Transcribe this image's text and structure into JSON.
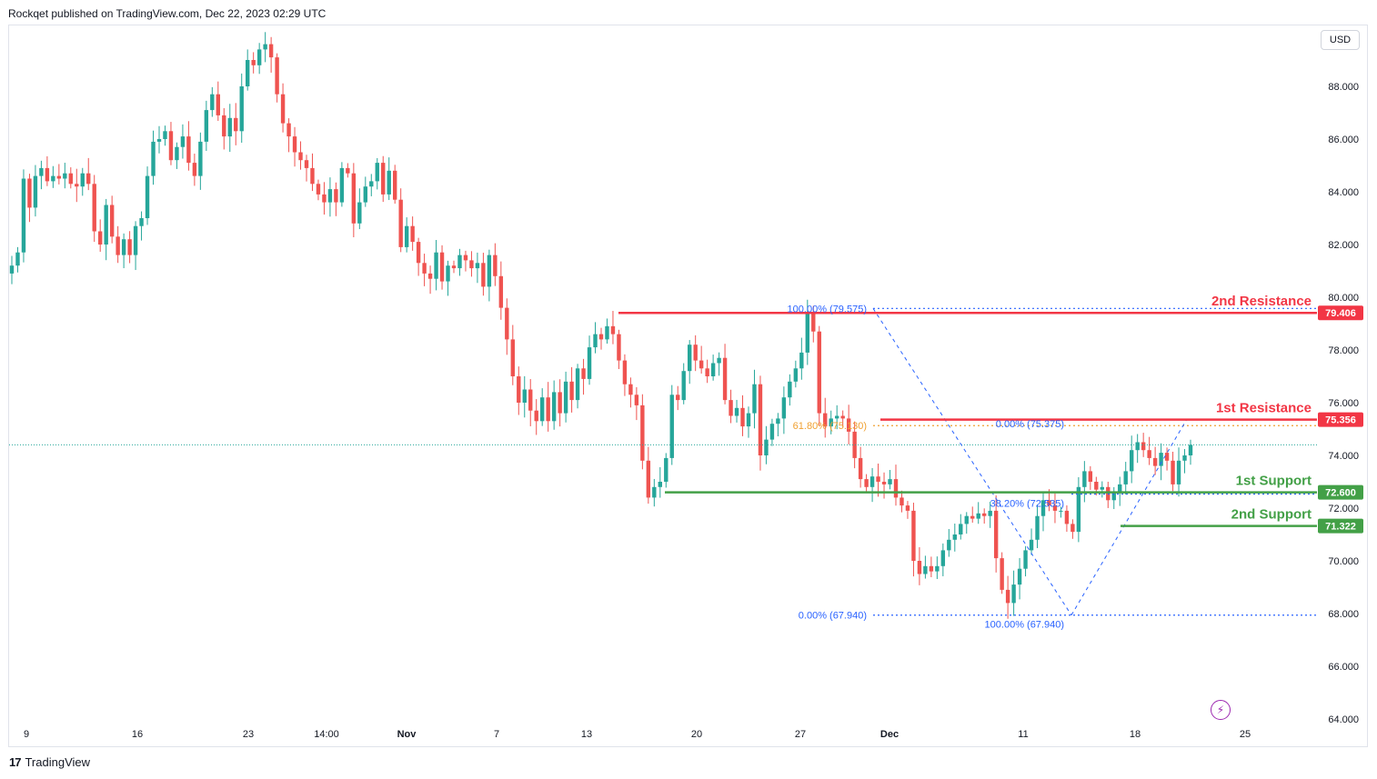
{
  "header": {
    "text": "Rockqet published on TradingView.com, Dec 22, 2023 02:29 UTC"
  },
  "currency_button": "USD",
  "footer": {
    "brand": "TradingView",
    "logo_glyph": "17"
  },
  "bolt_icon": "lightning-icon",
  "colors": {
    "up": "#26a69a",
    "down": "#ef5350",
    "resistance": "#f23645",
    "support": "#43a047",
    "fib_blue": "#2962ff",
    "fib_orange": "#f0a030"
  },
  "chart_data": {
    "type": "candlestick",
    "symbol_unit": "USD",
    "y_ticks": [
      "88.000",
      "86.000",
      "84.000",
      "82.000",
      "80.000",
      "78.000",
      "76.000",
      "74.000",
      "72.000",
      "70.000",
      "68.000",
      "66.000",
      "64.000"
    ],
    "x_ticks": [
      "9",
      "16",
      "23",
      "14:00",
      "Nov",
      "7",
      "13",
      "20",
      "27",
      "Dec",
      "11",
      "18",
      "25"
    ],
    "levels": [
      {
        "label": "2nd Resistance",
        "price": "79.406",
        "type": "resistance"
      },
      {
        "label": "1st Resistance",
        "price": "75.356",
        "type": "resistance"
      },
      {
        "label": "1st Support",
        "price": "72.600",
        "type": "support"
      },
      {
        "label": "2nd Support",
        "price": "71.322",
        "type": "support"
      }
    ],
    "fib_labels": [
      "100.00% (79.575)",
      "61.80% (75.130)",
      "0.00% (67.940)",
      "0.00% (75.375)",
      "38.20% (72.535)",
      "100.00% (67.940)"
    ],
    "closes": [
      81.2,
      81.7,
      84.5,
      83.4,
      84.6,
      84.9,
      84.4,
      84.6,
      84.5,
      84.7,
      84.3,
      84.2,
      84.7,
      84.3,
      82.5,
      82.0,
      83.5,
      82.3,
      81.6,
      82.2,
      81.6,
      82.7,
      83.0,
      84.6,
      85.9,
      86.0,
      86.3,
      85.2,
      85.7,
      86.1,
      85.1,
      84.6,
      85.9,
      87.1,
      87.7,
      86.9,
      86.1,
      86.8,
      86.3,
      88.0,
      89.0,
      88.8,
      89.4,
      89.6,
      89.1,
      87.7,
      86.6,
      86.1,
      85.5,
      85.2,
      84.9,
      84.3,
      83.9,
      83.6,
      84.1,
      83.6,
      84.9,
      84.7,
      82.8,
      83.6,
      84.2,
      84.4,
      85.1,
      83.9,
      84.8,
      83.7,
      81.9,
      82.7,
      82.1,
      81.3,
      80.9,
      80.7,
      81.7,
      80.6,
      81.2,
      81.1,
      81.6,
      81.4,
      81.1,
      81.3,
      80.4,
      81.6,
      80.8,
      79.6,
      78.4,
      77.0,
      76.0,
      76.5,
      75.7,
      75.3,
      76.2,
      75.3,
      76.4,
      75.6,
      76.8,
      76.1,
      77.3,
      76.9,
      78.1,
      78.6,
      78.4,
      78.9,
      78.6,
      77.6,
      76.7,
      76.3,
      75.9,
      73.8,
      72.4,
      72.8,
      73.0,
      73.9,
      76.3,
      76.1,
      77.2,
      78.2,
      77.6,
      77.3,
      77.0,
      77.5,
      77.7,
      76.1,
      75.5,
      75.8,
      75.1,
      75.6,
      76.7,
      74.0,
      74.6,
      75.2,
      75.4,
      76.2,
      76.8,
      77.3,
      77.9,
      79.4,
      78.7,
      75.6,
      75.1,
      75.4,
      75.5,
      75.4,
      74.9,
      73.9,
      73.1,
      72.8,
      73.2,
      73.0,
      72.9,
      73.1,
      72.4,
      72.1,
      71.9,
      70.0,
      69.5,
      69.8,
      69.6,
      69.8,
      70.4,
      70.8,
      71.0,
      71.4,
      71.7,
      71.6,
      71.8,
      71.7,
      71.9,
      70.1,
      68.9,
      68.4,
      69.1,
      69.7,
      70.4,
      70.8,
      71.7,
      72.3,
      72.1,
      71.9,
      71.9,
      71.4,
      71.1,
      72.8,
      73.4,
      73.0,
      72.7,
      72.8,
      72.3,
      72.6,
      72.9,
      73.4,
      74.2,
      74.5,
      74.2,
      73.9,
      73.6,
      74.1,
      73.8,
      72.9,
      73.8,
      74.0,
      74.4
    ]
  }
}
